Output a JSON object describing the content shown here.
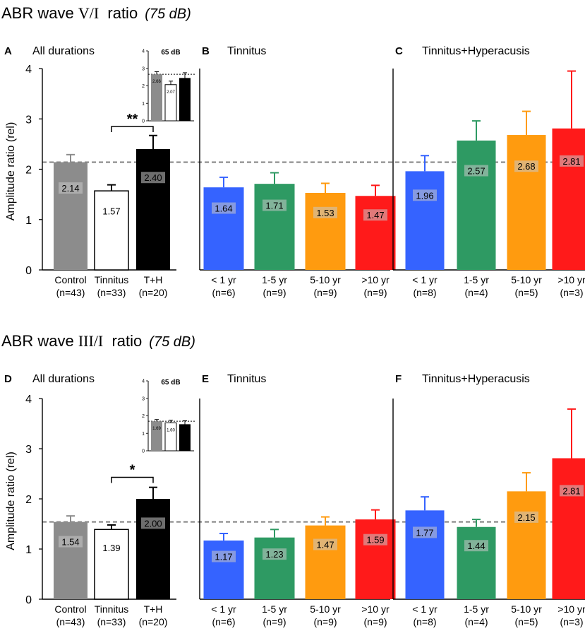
{
  "colors": {
    "control": "#8c8c8c",
    "tinnitus": "#ffffff",
    "th": "#000000",
    "lt1": "#3563ff",
    "y1to5": "#2e9a63",
    "y5to10": "#ff9b0f",
    "gt10": "#ff1a1a",
    "reference_line": "#808080",
    "label_bg": "#c8c8c8"
  },
  "chart_data": [
    {
      "row_title": "ABR wave V/I  ratio",
      "row_title_parts": {
        "prefix": "ABR wave ",
        "roman": "V/I",
        "suffix": "  ratio"
      },
      "dose": "(75 dB)",
      "ylabel": "Amplitude ratio (rel)",
      "ylim": [
        0,
        4
      ],
      "yticks": [
        0,
        1,
        2,
        3,
        4
      ],
      "reference_line": 2.14,
      "panels": [
        {
          "letter": "A",
          "title": "All durations",
          "type": "bar",
          "categories": [
            {
              "name": "Control",
              "n": "(n=43)",
              "value": 2.14,
              "value_label": "2.14",
              "error": 0.15,
              "color": "control"
            },
            {
              "name": "Tinnitus",
              "n": "(n=33)",
              "value": 1.57,
              "value_label": "1.57",
              "error": 0.12,
              "color": "tinnitus"
            },
            {
              "name": "T+H",
              "n": "(n=20)",
              "value": 2.4,
              "value_label": "2.40",
              "error": 0.27,
              "color": "th"
            }
          ],
          "significance": {
            "between": [
              1,
              2
            ],
            "label": "**",
            "y": 2.85
          },
          "inset": {
            "title": "65 dB",
            "ylim": [
              0,
              4
            ],
            "yticks": [
              "0",
              "1",
              "2",
              "3",
              "4"
            ],
            "reference": 2.66,
            "bars": [
              {
                "value": 2.66,
                "label": "2.66",
                "error": 0.15,
                "color": "control"
              },
              {
                "value": 2.07,
                "label": "2.07",
                "error": 0.2,
                "color": "tinnitus"
              },
              {
                "value": 2.45,
                "label": "2.45",
                "error": 0.3,
                "color": "th"
              }
            ]
          }
        },
        {
          "letter": "B",
          "title": "Tinnitus",
          "type": "bar",
          "categories": [
            {
              "name": "< 1 yr",
              "n": "(n=6)",
              "value": 1.64,
              "value_label": "1.64",
              "error": 0.2,
              "color": "lt1"
            },
            {
              "name": "1-5 yr",
              "n": "(n=9)",
              "value": 1.71,
              "value_label": "1.71",
              "error": 0.22,
              "color": "y1to5"
            },
            {
              "name": "5-10 yr",
              "n": "(n=9)",
              "value": 1.53,
              "value_label": "1.53",
              "error": 0.19,
              "color": "y5to10"
            },
            {
              "name": ">10 yr",
              "n": "(n=9)",
              "value": 1.47,
              "value_label": "1.47",
              "error": 0.21,
              "color": "gt10"
            }
          ]
        },
        {
          "letter": "C",
          "title": "Tinnitus+Hyperacusis",
          "type": "bar",
          "categories": [
            {
              "name": "< 1 yr",
              "n": "(n=8)",
              "value": 1.96,
              "value_label": "1.96",
              "error": 0.31,
              "color": "lt1"
            },
            {
              "name": "1-5 yr",
              "n": "(n=4)",
              "value": 2.57,
              "value_label": "2.57",
              "error": 0.39,
              "color": "y1to5"
            },
            {
              "name": "5-10 yr",
              "n": "(n=5)",
              "value": 2.68,
              "value_label": "2.68",
              "error": 0.47,
              "color": "y5to10"
            },
            {
              "name": ">10 yr",
              "n": "(n=3)",
              "value": 2.81,
              "value_label": "2.81",
              "error": 1.14,
              "color": "gt10"
            }
          ]
        }
      ]
    },
    {
      "row_title": "ABR wave III/I  ratio",
      "row_title_parts": {
        "prefix": "ABR wave ",
        "roman": "III/I",
        "suffix": "  ratio"
      },
      "dose": "(75 dB)",
      "ylabel": "Amplitude ratio (rel)",
      "ylim": [
        0,
        4
      ],
      "yticks": [
        0,
        1,
        2,
        3,
        4
      ],
      "reference_line": 1.54,
      "panels": [
        {
          "letter": "D",
          "title": "All durations",
          "type": "bar",
          "categories": [
            {
              "name": "Control",
              "n": "(n=43)",
              "value": 1.54,
              "value_label": "1.54",
              "error": 0.12,
              "color": "control"
            },
            {
              "name": "Tinnitus",
              "n": "(n=33)",
              "value": 1.39,
              "value_label": "1.39",
              "error": 0.09,
              "color": "tinnitus"
            },
            {
              "name": "T+H",
              "n": "(n=20)",
              "value": 2.0,
              "value_label": "2.00",
              "error": 0.23,
              "color": "th"
            }
          ],
          "significance": {
            "between": [
              1,
              2
            ],
            "label": "*",
            "y": 2.43
          },
          "inset": {
            "title": "65 dB",
            "ylim": [
              0,
              4
            ],
            "yticks": [
              "0",
              "1",
              "2",
              "3",
              "4"
            ],
            "reference": 1.69,
            "bars": [
              {
                "value": 1.69,
                "label": "1.69",
                "error": 0.1,
                "color": "control"
              },
              {
                "value": 1.6,
                "label": "1.60",
                "error": 0.15,
                "color": "tinnitus"
              },
              {
                "value": 1.52,
                "label": "1.52",
                "error": 0.2,
                "color": "th"
              }
            ]
          }
        },
        {
          "letter": "E",
          "title": "Tinnitus",
          "type": "bar",
          "categories": [
            {
              "name": "< 1 yr",
              "n": "(n=6)",
              "value": 1.17,
              "value_label": "1.17",
              "error": 0.14,
              "color": "lt1"
            },
            {
              "name": "1-5 yr",
              "n": "(n=9)",
              "value": 1.23,
              "value_label": "1.23",
              "error": 0.16,
              "color": "y1to5"
            },
            {
              "name": "5-10 yr",
              "n": "(n=9)",
              "value": 1.47,
              "value_label": "1.47",
              "error": 0.17,
              "color": "y5to10"
            },
            {
              "name": ">10 yr",
              "n": "(n=9)",
              "value": 1.59,
              "value_label": "1.59",
              "error": 0.19,
              "color": "gt10"
            }
          ]
        },
        {
          "letter": "F",
          "title": "Tinnitus+Hyperacusis",
          "type": "bar",
          "categories": [
            {
              "name": "< 1 yr",
              "n": "(n=8)",
              "value": 1.77,
              "value_label": "1.77",
              "error": 0.27,
              "color": "lt1"
            },
            {
              "name": "1-5 yr",
              "n": "(n=4)",
              "value": 1.44,
              "value_label": "1.44",
              "error": 0.15,
              "color": "y1to5"
            },
            {
              "name": "5-10 yr",
              "n": "(n=5)",
              "value": 2.15,
              "value_label": "2.15",
              "error": 0.37,
              "color": "y5to10"
            },
            {
              "name": ">10 yr",
              "n": "(n=3)",
              "value": 2.81,
              "value_label": "2.81",
              "error": 0.98,
              "color": "gt10"
            }
          ]
        }
      ]
    }
  ]
}
